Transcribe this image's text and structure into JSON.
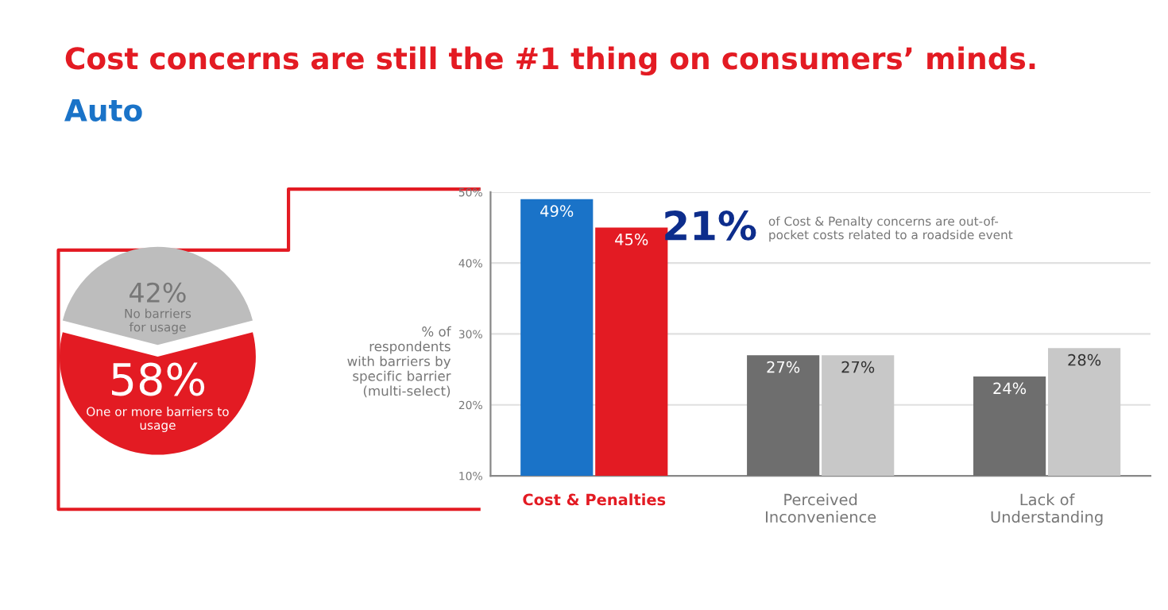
{
  "chart_data": [
    {
      "type": "pie",
      "title": "Cost concerns are still the #1 thing on consumers’ minds.",
      "subtitle": "Auto",
      "categories": [
        "No barriers\nfor usage",
        "One or more barriers to\nusage"
      ],
      "values": [
        42,
        58
      ],
      "colors": [
        "#bdbdbd",
        "#e31b23"
      ],
      "value_labels": [
        "42%",
        "58%"
      ]
    },
    {
      "type": "bar",
      "ylabel": "% of\nrespondents\nwith barriers by\nspecific barrier\n(multi-select)",
      "categories": [
        "Cost & Penalties",
        "Perceived\nInconvenience",
        "Lack of\nUnderstanding"
      ],
      "series": [
        {
          "colors": [
            "#1a73c8",
            "#6e6e6e",
            "#6e6e6e"
          ],
          "values": [
            49,
            27,
            24
          ],
          "value_labels": [
            "49%",
            "27%",
            "24%"
          ]
        },
        {
          "colors": [
            "#e31b23",
            "#c8c8c8",
            "#c8c8c8"
          ],
          "values": [
            45,
            27,
            28
          ],
          "value_labels": [
            "45%",
            "27%",
            "28%"
          ]
        }
      ],
      "ylim": [
        10,
        50
      ],
      "yticks": [
        {
          "value": 10,
          "label": "10%"
        },
        {
          "value": 20,
          "label": "20%"
        },
        {
          "value": 30,
          "label": "30%"
        },
        {
          "value": 40,
          "label": "40%"
        },
        {
          "value": 50,
          "label": "50%"
        }
      ],
      "grid": "y",
      "annotations": [
        "21%",
        "of Cost & Penalty concerns are out-of-\npocket costs related to a roadside event"
      ]
    }
  ]
}
